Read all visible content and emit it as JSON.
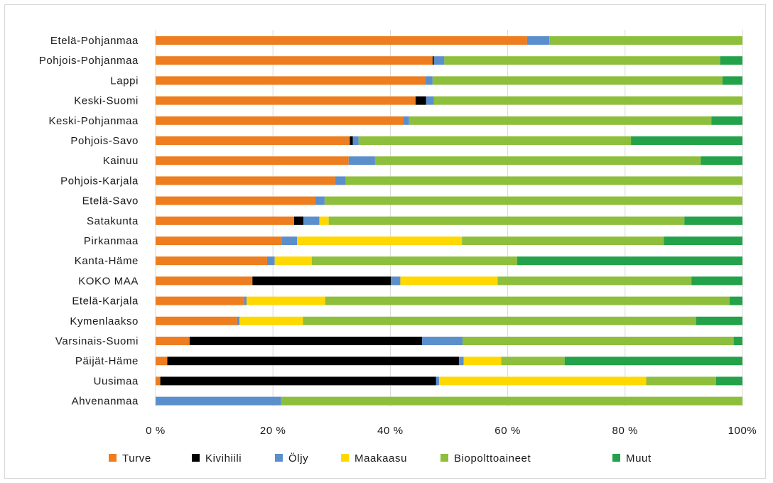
{
  "chart_data": {
    "type": "bar",
    "orientation": "horizontal",
    "stacked": "percent",
    "categories": [
      "Etelä-Pohjanmaa",
      "Pohjois-Pohjanmaa",
      "Lappi",
      "Keski-Suomi",
      "Keski-Pohjanmaa",
      "Pohjois-Savo",
      "Kainuu",
      "Pohjois-Karjala",
      "Etelä-Savo",
      "Satakunta",
      "Pirkanmaa",
      "Kanta-Häme",
      "KOKO MAA",
      "Etelä-Karjala",
      "Kymenlaakso",
      "Varsinais-Suomi",
      "Päijät-Häme",
      "Uusimaa",
      "Ahvenanmaa"
    ],
    "series": [
      {
        "name": "Turve",
        "color": "#ed7d1f",
        "values": [
          63.3,
          47.2,
          46.0,
          44.3,
          42.2,
          33.1,
          32.9,
          30.6,
          27.2,
          23.6,
          21.5,
          19.0,
          16.5,
          15.1,
          13.9,
          5.8,
          2.0,
          0.8,
          0
        ]
      },
      {
        "name": "Kivihiili",
        "color": "#000000",
        "values": [
          0,
          0.2,
          0,
          1.8,
          0,
          0.5,
          0,
          0,
          0,
          1.6,
          0,
          0,
          23.6,
          0,
          0,
          39.6,
          49.7,
          47.0,
          0
        ]
      },
      {
        "name": "Öljy",
        "color": "#5b8fcc",
        "values": [
          3.8,
          1.8,
          1.2,
          1.3,
          1.0,
          1.0,
          4.5,
          1.8,
          1.6,
          2.7,
          2.6,
          1.3,
          1.6,
          0.4,
          0.4,
          6.9,
          0.8,
          0.5,
          21.4
        ]
      },
      {
        "name": "Maakaasu",
        "color": "#ffd800",
        "values": [
          0,
          0,
          0,
          0,
          0,
          0,
          0,
          0,
          0,
          1.6,
          28.1,
          6.3,
          16.6,
          13.4,
          10.8,
          0,
          6.4,
          35.3,
          0
        ]
      },
      {
        "name": "Biopolttoaineet",
        "color": "#8dbf3c",
        "values": [
          32.9,
          47.0,
          49.4,
          52.6,
          51.5,
          46.4,
          55.5,
          67.6,
          71.2,
          60.6,
          34.4,
          35.0,
          33.0,
          68.9,
          67.0,
          46.2,
          10.8,
          11.9,
          78.6
        ]
      },
      {
        "name": "Muut",
        "color": "#23a24a",
        "values": [
          0,
          3.8,
          3.4,
          0,
          5.3,
          19.0,
          7.1,
          0,
          0,
          9.9,
          13.4,
          38.4,
          8.7,
          2.2,
          7.9,
          1.5,
          30.3,
          4.5,
          0
        ]
      }
    ],
    "xlim": [
      0,
      100
    ],
    "x_ticks": [
      "0 %",
      "20 %",
      "40 %",
      "60 %",
      "80 %",
      "100%"
    ],
    "x_tick_values": [
      0,
      20,
      40,
      60,
      80,
      100
    ],
    "grid": "vertical",
    "legend": "bottom",
    "title": "",
    "xlabel": "",
    "ylabel": "",
    "colors": {
      "grid": "#d9d9d9",
      "text": "#1a1a1a",
      "frame": "#d9d9d9"
    }
  }
}
